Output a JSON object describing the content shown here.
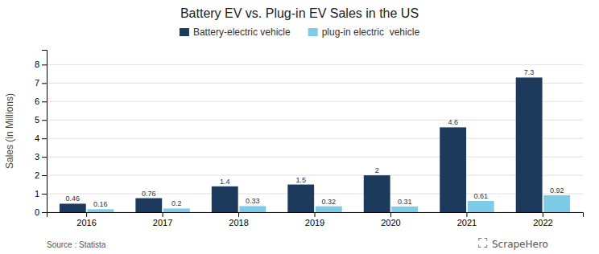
{
  "chart_data": {
    "type": "bar",
    "title": "Battery EV vs. Plug-in EV Sales in the US",
    "categories": [
      "2016",
      "2017",
      "2018",
      "2019",
      "2020",
      "2021",
      "2022"
    ],
    "series": [
      {
        "name": "Battery-electric vehicle",
        "color": "#1b3a5c",
        "values": [
          0.46,
          0.76,
          1.4,
          1.5,
          2,
          4.6,
          7.3
        ]
      },
      {
        "name": "plug-in electric  vehicle",
        "color": "#7ecbe8",
        "values": [
          0.16,
          0.2,
          0.33,
          0.32,
          0.31,
          0.61,
          0.92
        ]
      }
    ],
    "ylabel": "Sales (in Millions)",
    "ylim": [
      0,
      8.8
    ],
    "yticks": [
      0,
      1,
      2,
      3,
      4,
      5,
      6,
      7,
      8
    ],
    "grid": true,
    "legend": "top",
    "data_labels": true,
    "annotations": [
      "Source : Statista",
      "⛶",
      "ScrapeHero"
    ]
  }
}
